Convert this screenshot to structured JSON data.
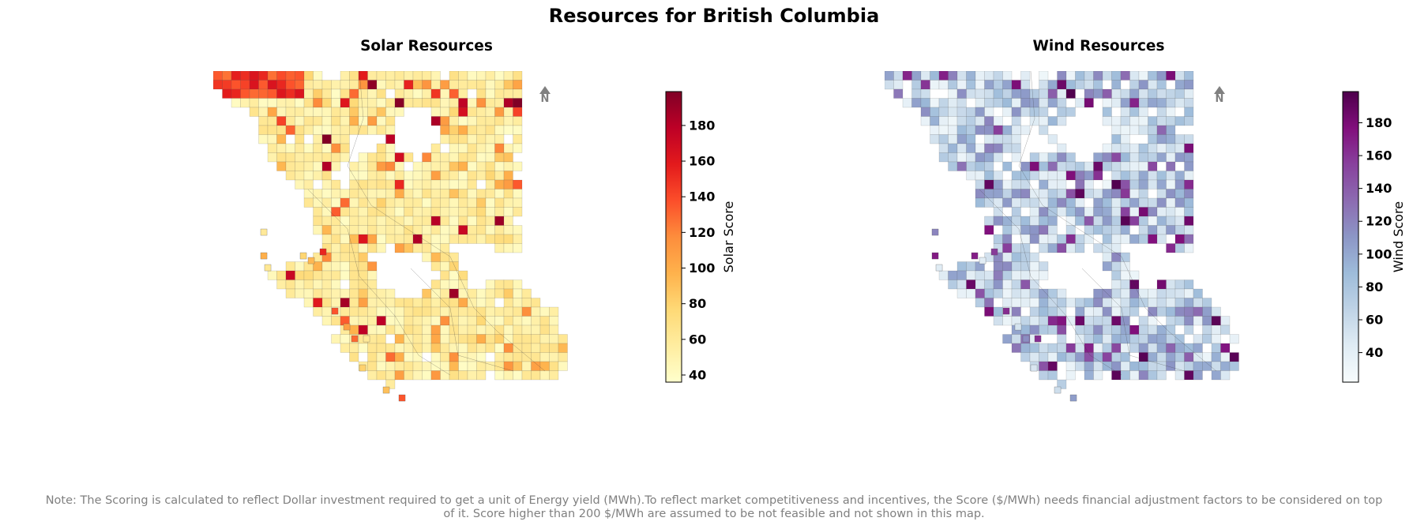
{
  "title": "Resources for British Columbia",
  "panels": [
    {
      "id": "solar",
      "title": "Solar Resources",
      "north_label": "N",
      "colorbar": {
        "label": "Solar Score",
        "min": 36,
        "max": 199,
        "ticks": [
          40,
          60,
          80,
          100,
          120,
          140,
          160,
          180
        ],
        "colormap": "YlOrRd",
        "colors": [
          "#ffffcc",
          "#ffeda0",
          "#fed976",
          "#feb24c",
          "#fd8d3c",
          "#fc4e2a",
          "#e31a1c",
          "#bd0026",
          "#800026"
        ]
      }
    },
    {
      "id": "wind",
      "title": "Wind Resources",
      "north_label": "N",
      "colorbar": {
        "label": "Wind Score",
        "min": 22,
        "max": 199,
        "ticks": [
          40,
          60,
          80,
          100,
          120,
          140,
          160,
          180
        ],
        "colormap": "BuPu",
        "colors": [
          "#f7fcfd",
          "#e0ecf4",
          "#bfd3e6",
          "#9ebcda",
          "#8c96c6",
          "#8c6bb1",
          "#88419d",
          "#810f7c",
          "#4d004b"
        ]
      }
    }
  ],
  "footnote_lines": [
    "Note: The Scoring is calculated to reflect Dollar investment required to get a unit of Energy yield (MWh).To reflect market competitiveness and incentives, the Score ($/MWh) needs financial adjustment factors to be considered on top",
    "of it. Score higher than 200 $/MWh are assumed to be not feasible and not shown in this map."
  ]
}
